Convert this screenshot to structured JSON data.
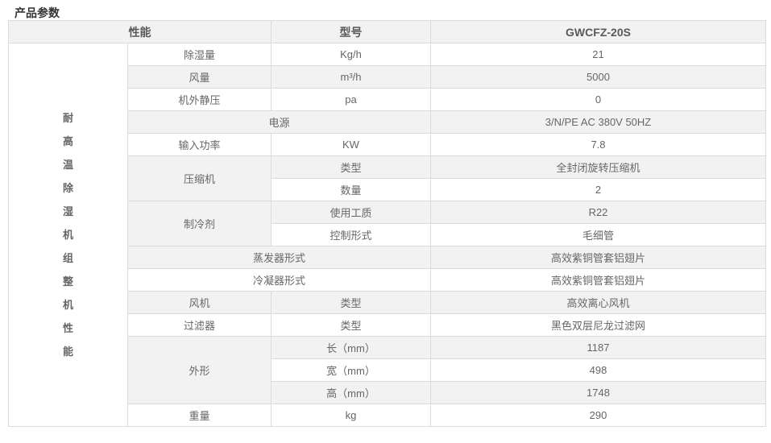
{
  "section_title": "产品参数",
  "colors": {
    "header_bg": "#f2f2f2",
    "stripe_bg": "#f2f2f2",
    "border": "#dcdcdc",
    "body_text": "#666666",
    "title_text": "#333333"
  },
  "table": {
    "header": {
      "performance": "性能",
      "model": "型号",
      "model_value": "GWCFZ-20S"
    },
    "category_vertical": "耐\n高\n温\n除\n湿\n机\n组\n整\n机\n性\n能",
    "rows": [
      {
        "c2": "除湿量",
        "c3": "Kg/h",
        "v": "21"
      },
      {
        "c2": "风量",
        "c3": "m³/h",
        "v": "5000"
      },
      {
        "c2": "机外静压",
        "c3": "pa",
        "v": "0"
      },
      {
        "c23": "电源",
        "v": "3/N/PE AC 380V 50HZ"
      },
      {
        "c2": "输入功率",
        "c3": "KW",
        "v": "7.8"
      },
      {
        "c2": "压缩机",
        "c3": "类型",
        "v": "全封闭旋转压缩机"
      },
      {
        "c3": "数量",
        "v": "2"
      },
      {
        "c2": "制冷剂",
        "c3": "使用工质",
        "v": "R22"
      },
      {
        "c3": "控制形式",
        "v": "毛细管"
      },
      {
        "c23": "蒸发器形式",
        "v": "高效紫铜管套铝翅片"
      },
      {
        "c23": "冷凝器形式",
        "v": "高效紫铜管套铝翅片"
      },
      {
        "c2": "风机",
        "c3": "类型",
        "v": "高效离心风机"
      },
      {
        "c2": "过滤器",
        "c3": "类型",
        "v": "黑色双层尼龙过滤网"
      },
      {
        "c2": "外形",
        "c3": "长（mm）",
        "v": "1187"
      },
      {
        "c3": "宽（mm）",
        "v": "498"
      },
      {
        "c3": "高（mm）",
        "v": "1748"
      },
      {
        "c2": "重量",
        "c3": "kg",
        "v": "290"
      }
    ]
  }
}
